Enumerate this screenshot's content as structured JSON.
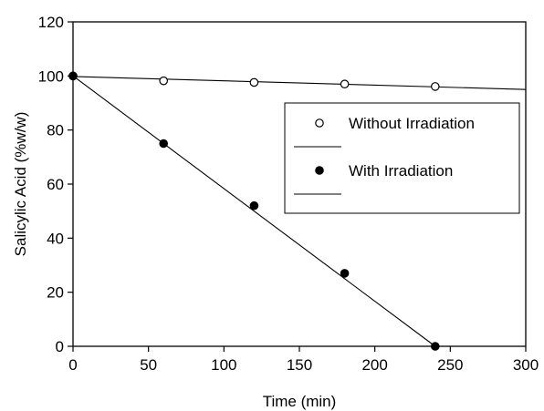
{
  "chart_data": {
    "type": "scatter",
    "xlabel": "Time (min)",
    "ylabel": "Salicylic Acid (%w/w)",
    "xlim": [
      0,
      300
    ],
    "ylim": [
      0,
      120
    ],
    "xticks": [
      0,
      50,
      100,
      150,
      200,
      250,
      300
    ],
    "yticks": [
      0,
      20,
      40,
      60,
      80,
      100,
      120
    ],
    "grid": false,
    "legend_position": "right",
    "series": [
      {
        "name": "Without Irradiation",
        "marker": "open-circle",
        "x": [
          0,
          60,
          120,
          180,
          240
        ],
        "y": [
          100,
          98.2,
          97.6,
          97.0,
          96.1
        ],
        "fit": {
          "x": [
            0,
            300
          ],
          "y": [
            99.8,
            95.0
          ]
        }
      },
      {
        "name": "With Irradiation",
        "marker": "filled-circle",
        "x": [
          0,
          60,
          120,
          180,
          240
        ],
        "y": [
          100,
          75,
          52,
          27,
          0
        ],
        "fit": {
          "x": [
            0,
            240
          ],
          "y": [
            100,
            0
          ]
        }
      }
    ]
  }
}
